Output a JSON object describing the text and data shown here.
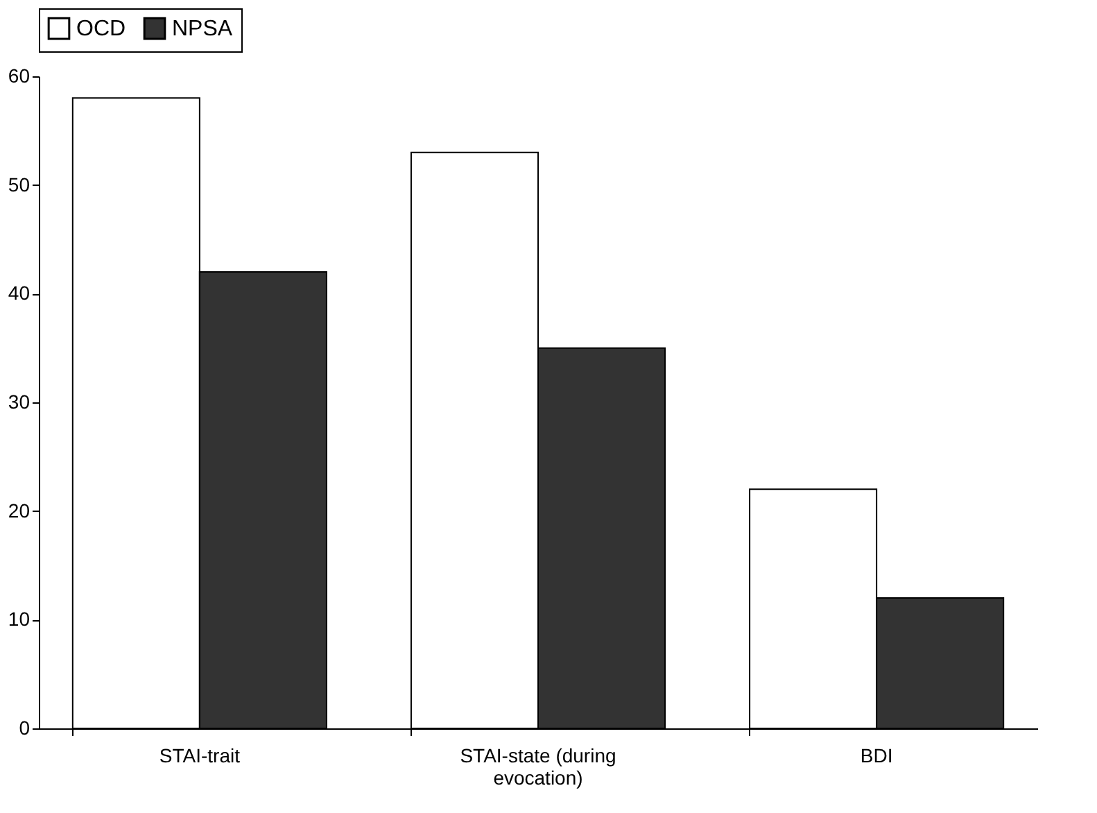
{
  "chart_data": {
    "type": "bar",
    "categories": [
      "STAI-trait",
      "STAI-state (during evocation)",
      "BDI"
    ],
    "series": [
      {
        "name": "OCD",
        "color": "#ffffff",
        "values": [
          58,
          53,
          22
        ]
      },
      {
        "name": "NPSA",
        "color": "#333333",
        "values": [
          42,
          35,
          12
        ]
      }
    ],
    "ylim": [
      0,
      60
    ],
    "yticks": [
      0,
      10,
      20,
      30,
      40,
      50,
      60
    ],
    "grid": false,
    "legend": "top"
  }
}
